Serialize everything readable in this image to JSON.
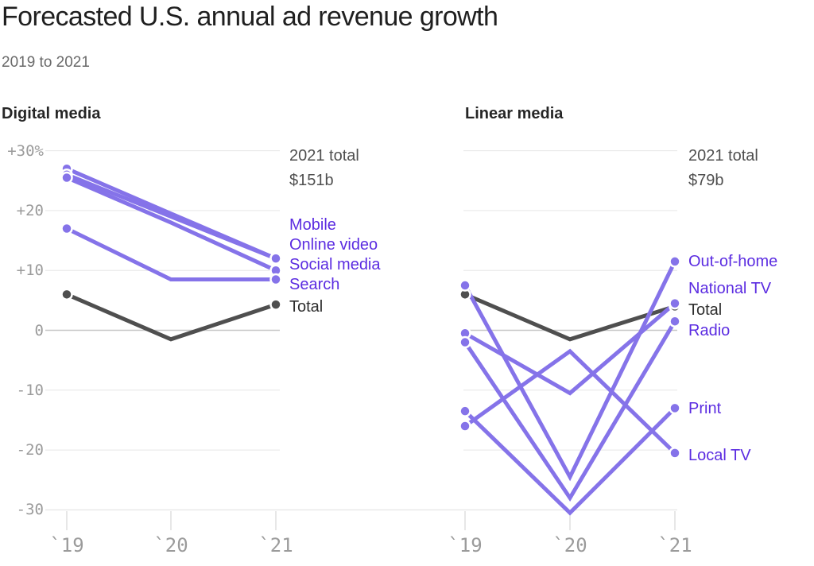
{
  "title": "Forecasted U.S. annual ad revenue growth",
  "subtitle": "2019 to 2021",
  "colors": {
    "title_text": "#1f1f1f",
    "subtitle_text": "#6a6a6a",
    "panel_title_text": "#262626",
    "tick_text": "#9b9b9b",
    "annotation_text": "#4f4f4f",
    "accent_purple_text": "#5b2ce1",
    "accent_purple_line": "#8573e9",
    "dark_text": "#2e2e2e",
    "dark_line": "#4f4f4f",
    "gridline": "#e6e6e6",
    "zero_line": "#c6c6c6",
    "axis_line": "#dfdfdf",
    "dot_ring": "#ffffff",
    "background": "#ffffff"
  },
  "chart_data": [
    {
      "type": "line",
      "panel": "Digital media",
      "annotation_label": "2021 total",
      "annotation_value": "$151b",
      "x": [
        "`19",
        "`20",
        "`21"
      ],
      "ylim": [
        -30,
        30
      ],
      "yticks": [
        "+30%",
        "+20",
        "+10",
        "0",
        "-10",
        "-20",
        "-30"
      ],
      "grid": true,
      "legend_position": "right-of-line-ends",
      "series": [
        {
          "name": "Mobile",
          "color": "purple",
          "values": [
            27,
            19.5,
            12
          ]
        },
        {
          "name": "Online video",
          "color": "purple",
          "values": [
            26,
            19,
            12
          ]
        },
        {
          "name": "Social media",
          "color": "purple",
          "values": [
            25.5,
            18,
            10
          ]
        },
        {
          "name": "Search",
          "color": "purple",
          "values": [
            17,
            8.5,
            8.5
          ]
        },
        {
          "name": "Total",
          "color": "dark",
          "values": [
            6,
            -1.5,
            4.3
          ]
        }
      ]
    },
    {
      "type": "line",
      "panel": "Linear media",
      "annotation_label": "2021 total",
      "annotation_value": "$79b",
      "x": [
        "`19",
        "`20",
        "`21"
      ],
      "ylim": [
        -30,
        30
      ],
      "yticks": [],
      "grid": true,
      "legend_position": "right-of-line-ends",
      "series": [
        {
          "name": "Out-of-home",
          "color": "purple",
          "values": [
            7.5,
            -24.5,
            11.5
          ]
        },
        {
          "name": "National TV",
          "color": "purple",
          "values": [
            -0.5,
            -10.5,
            4.5
          ]
        },
        {
          "name": "Total",
          "color": "dark",
          "values": [
            6,
            -1.5,
            4
          ]
        },
        {
          "name": "Radio",
          "color": "purple",
          "values": [
            -2,
            -28,
            1.5
          ]
        },
        {
          "name": "Print",
          "color": "purple",
          "values": [
            -13.5,
            -30.5,
            -13
          ]
        },
        {
          "name": "Local TV",
          "color": "purple",
          "values": [
            -16,
            -3.5,
            -20.5
          ]
        }
      ]
    }
  ]
}
